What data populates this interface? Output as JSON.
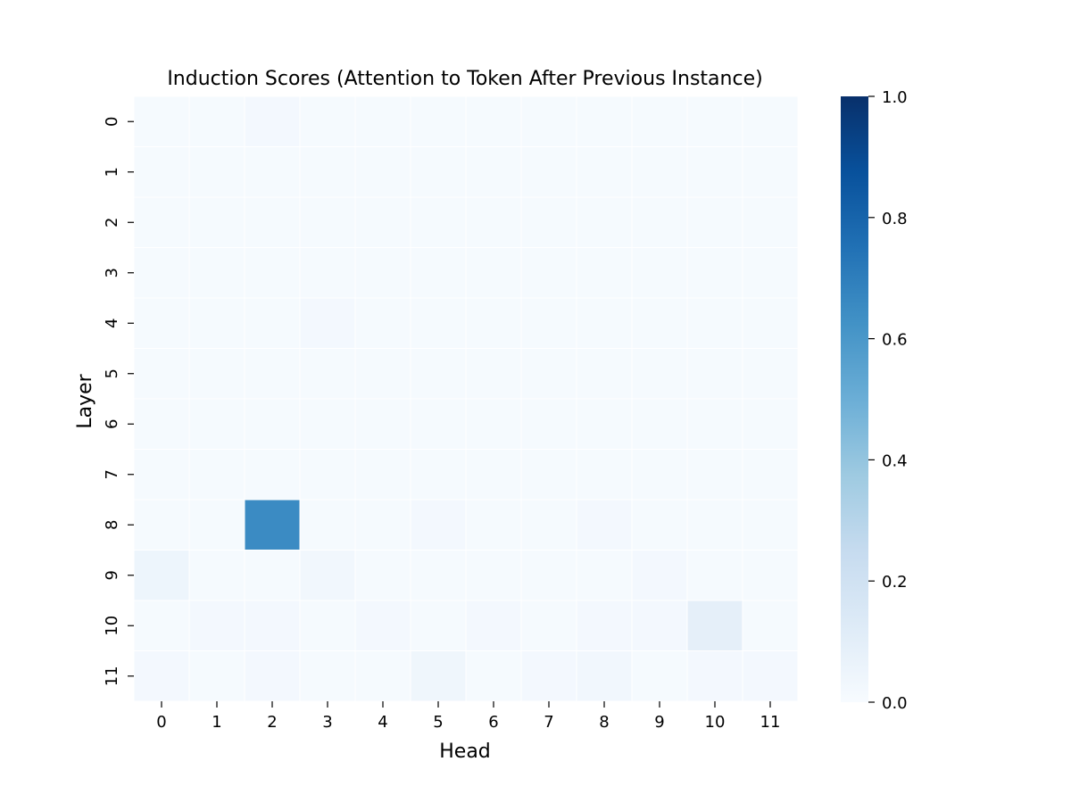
{
  "chart_data": {
    "type": "heatmap",
    "title": "Induction Scores (Attention to Token After Previous Instance)",
    "xlabel": "Head",
    "ylabel": "Layer",
    "x_categories": [
      "0",
      "1",
      "2",
      "3",
      "4",
      "5",
      "6",
      "7",
      "8",
      "9",
      "10",
      "11"
    ],
    "y_categories": [
      "0",
      "1",
      "2",
      "3",
      "4",
      "5",
      "6",
      "7",
      "8",
      "9",
      "10",
      "11"
    ],
    "colormap": "Blues",
    "vmin": 0.0,
    "vmax": 1.0,
    "colorbar_ticks": [
      "0.0",
      "0.2",
      "0.4",
      "0.6",
      "0.8",
      "1.0"
    ],
    "values": [
      [
        0.01,
        0.01,
        0.02,
        0.01,
        0.01,
        0.01,
        0.01,
        0.01,
        0.01,
        0.01,
        0.01,
        0.01
      ],
      [
        0.01,
        0.01,
        0.01,
        0.01,
        0.01,
        0.01,
        0.01,
        0.01,
        0.01,
        0.01,
        0.01,
        0.01
      ],
      [
        0.01,
        0.01,
        0.01,
        0.01,
        0.01,
        0.01,
        0.01,
        0.01,
        0.01,
        0.01,
        0.01,
        0.01
      ],
      [
        0.01,
        0.01,
        0.01,
        0.01,
        0.01,
        0.01,
        0.01,
        0.01,
        0.01,
        0.01,
        0.01,
        0.01
      ],
      [
        0.01,
        0.01,
        0.01,
        0.02,
        0.01,
        0.01,
        0.01,
        0.01,
        0.01,
        0.01,
        0.01,
        0.01
      ],
      [
        0.01,
        0.01,
        0.01,
        0.01,
        0.01,
        0.01,
        0.01,
        0.01,
        0.01,
        0.01,
        0.01,
        0.01
      ],
      [
        0.01,
        0.01,
        0.01,
        0.01,
        0.01,
        0.01,
        0.01,
        0.01,
        0.01,
        0.01,
        0.01,
        0.01
      ],
      [
        0.01,
        0.01,
        0.01,
        0.01,
        0.01,
        0.01,
        0.01,
        0.01,
        0.01,
        0.01,
        0.01,
        0.01
      ],
      [
        0.01,
        0.01,
        0.65,
        0.01,
        0.01,
        0.02,
        0.01,
        0.01,
        0.02,
        0.01,
        0.01,
        0.01
      ],
      [
        0.05,
        0.01,
        0.01,
        0.03,
        0.01,
        0.01,
        0.01,
        0.01,
        0.01,
        0.02,
        0.01,
        0.01
      ],
      [
        0.01,
        0.02,
        0.02,
        0.01,
        0.02,
        0.01,
        0.02,
        0.01,
        0.02,
        0.02,
        0.09,
        0.01
      ],
      [
        0.02,
        0.01,
        0.02,
        0.01,
        0.01,
        0.04,
        0.01,
        0.02,
        0.03,
        0.01,
        0.02,
        0.02
      ]
    ]
  }
}
